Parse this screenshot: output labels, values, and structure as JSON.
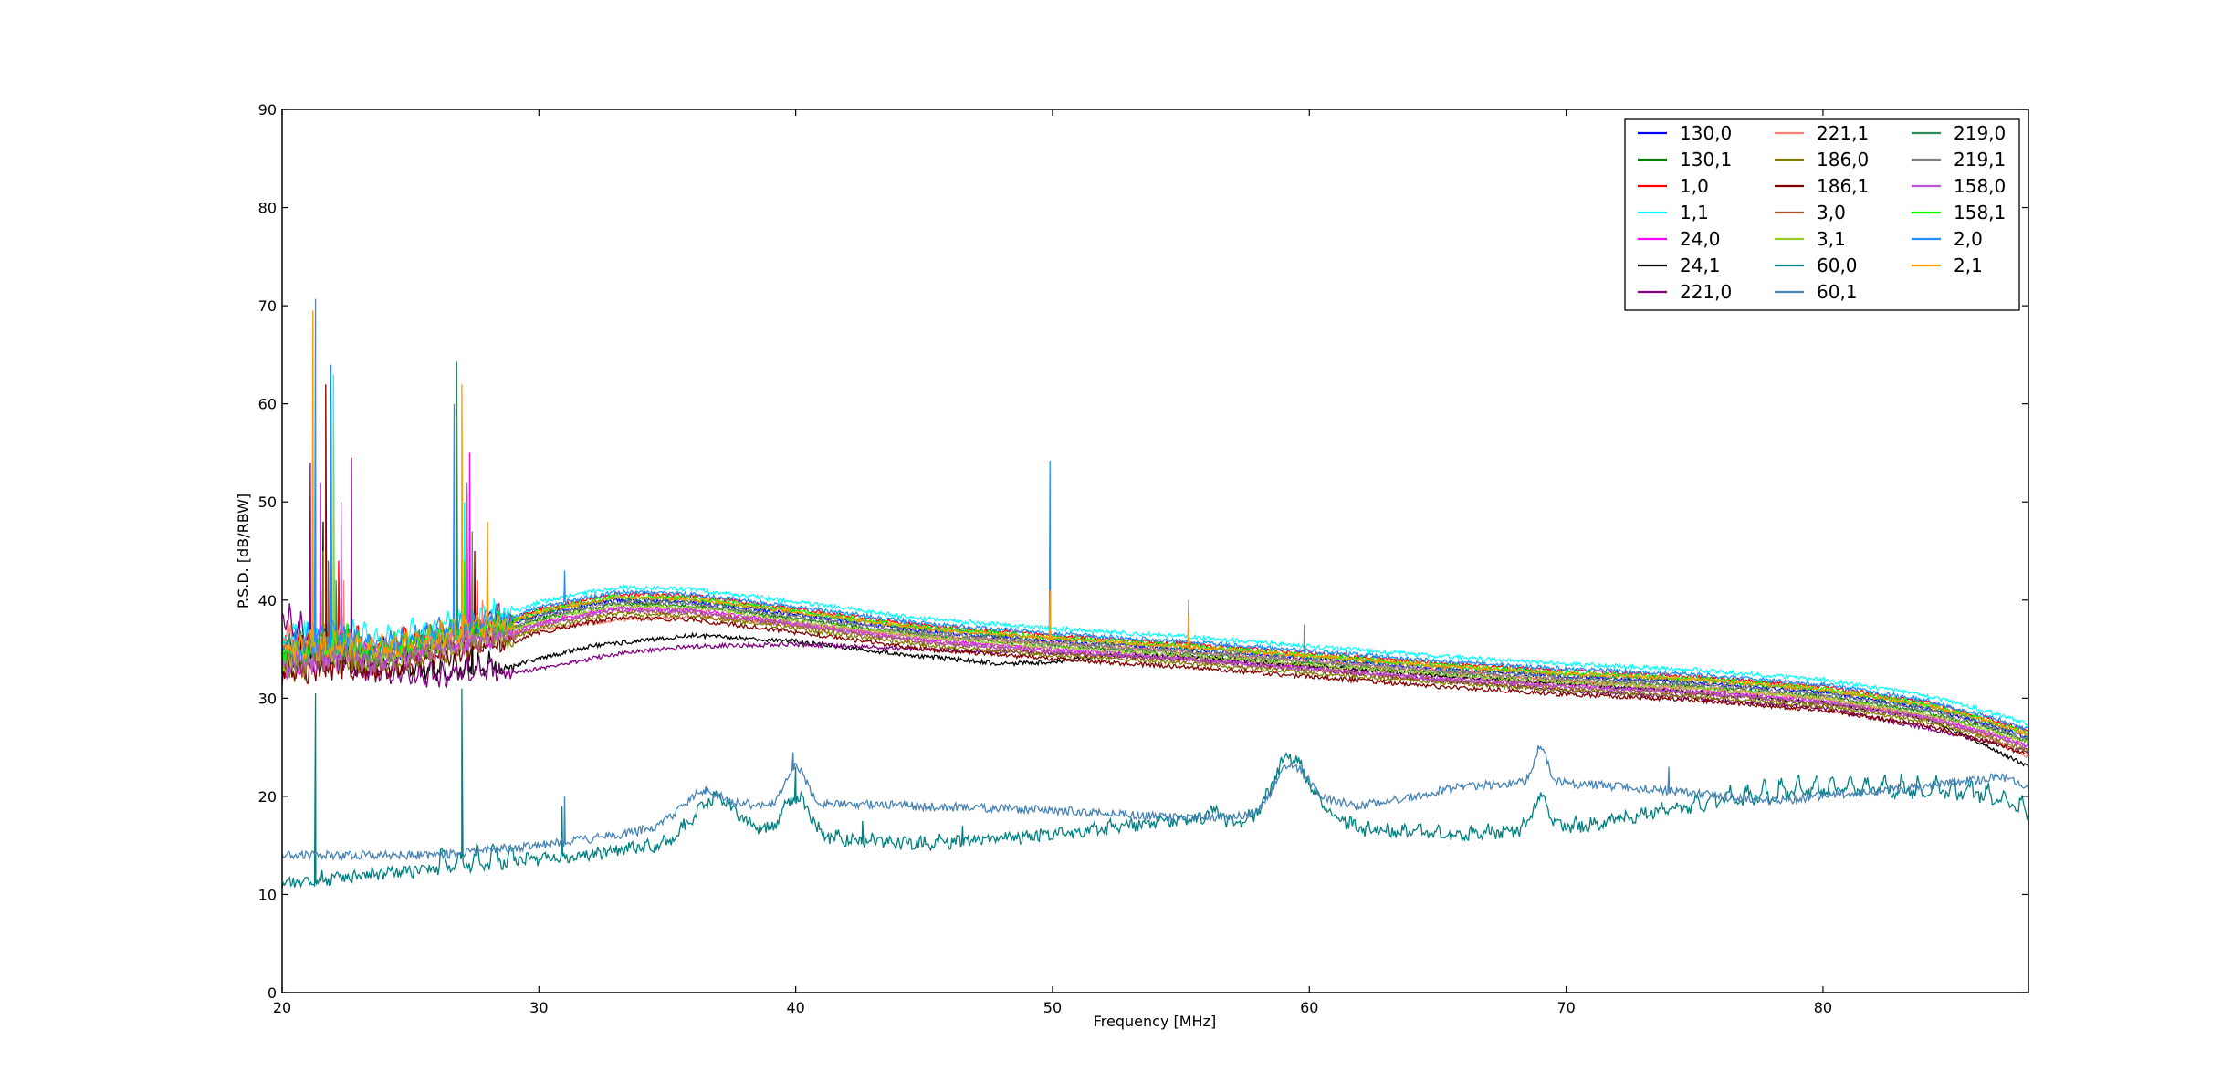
{
  "chart_data": {
    "type": "line",
    "title": "",
    "xlabel": "Frequency [MHz]",
    "ylabel": "P.S.D. [dB/RBW]",
    "xlim": [
      20,
      88
    ],
    "ylim": [
      0,
      90
    ],
    "x_ticks": [
      20,
      30,
      40,
      50,
      60,
      70,
      80
    ],
    "y_ticks": [
      0,
      10,
      20,
      30,
      40,
      50,
      60,
      70,
      80,
      90
    ],
    "grid": false,
    "legend_position": "top-right",
    "legend_columns": 3,
    "series": [
      {
        "name": "130,0",
        "color": "#0000ff",
        "profile": "upper",
        "offset": 0.0,
        "spikes": [
          [
            21.3,
            50
          ],
          [
            27.0,
            44
          ]
        ]
      },
      {
        "name": "130,1",
        "color": "#008000",
        "profile": "upper",
        "offset": -0.4,
        "spikes": [
          [
            21.9,
            46
          ],
          [
            27.3,
            48
          ]
        ]
      },
      {
        "name": "1,0",
        "color": "#ff0000",
        "profile": "upper",
        "offset": 0.6,
        "spikes": [
          [
            22.2,
            44
          ],
          [
            27.6,
            42
          ]
        ]
      },
      {
        "name": "1,1",
        "color": "#00ffff",
        "profile": "upper",
        "offset": 1.3,
        "spikes": [
          [
            22.0,
            63
          ],
          [
            27.1,
            50
          ]
        ]
      },
      {
        "name": "24,0",
        "color": "#ff00ff",
        "profile": "upper",
        "offset": -0.8,
        "spikes": [
          [
            21.5,
            52
          ],
          [
            27.3,
            55
          ]
        ]
      },
      {
        "name": "24,1",
        "color": "#000000",
        "profile": "black",
        "offset": 0.0,
        "spikes": [
          [
            21.6,
            48
          ],
          [
            27.4,
            40
          ]
        ]
      },
      {
        "name": "221,0",
        "color": "#800080",
        "profile": "purple",
        "offset": 0.0,
        "spikes": [
          [
            21.1,
            54
          ],
          [
            22.7,
            54.5
          ],
          [
            27.2,
            51
          ]
        ]
      },
      {
        "name": "221,1",
        "color": "#fa8072",
        "profile": "salmon",
        "offset": 0.0,
        "spikes": [
          [
            22.4,
            42
          ],
          [
            27.8,
            40
          ]
        ]
      },
      {
        "name": "186,0",
        "color": "#808000",
        "profile": "upper",
        "offset": -1.4,
        "spikes": [
          [
            21.6,
            45
          ],
          [
            27.4,
            47
          ]
        ]
      },
      {
        "name": "186,1",
        "color": "#800000",
        "profile": "upper",
        "offset": -1.8,
        "spikes": [
          [
            21.7,
            62
          ],
          [
            27.5,
            45
          ]
        ]
      },
      {
        "name": "3,0",
        "color": "#a0522d",
        "profile": "upper",
        "offset": -1.1,
        "spikes": [
          [
            21.8,
            44
          ],
          [
            27.2,
            46
          ]
        ]
      },
      {
        "name": "3,1",
        "color": "#9acd32",
        "profile": "upper",
        "offset": -0.6,
        "spikes": [
          [
            22.0,
            58
          ],
          [
            27.0,
            47
          ]
        ]
      },
      {
        "name": "60,0",
        "color": "#008080",
        "profile": "teal",
        "offset": 0.0,
        "spikes": [
          [
            21.3,
            30.5
          ],
          [
            27.0,
            31
          ],
          [
            30.9,
            19
          ],
          [
            40.0,
            23
          ],
          [
            42.6,
            17.5
          ],
          [
            46.5,
            17
          ]
        ]
      },
      {
        "name": "60,1",
        "color": "#4682b4",
        "profile": "steel",
        "offset": 0.0,
        "spikes": [
          [
            31.0,
            20
          ],
          [
            36.5,
            21
          ],
          [
            39.9,
            24.5
          ],
          [
            69.0,
            25
          ],
          [
            74.0,
            23
          ]
        ]
      },
      {
        "name": "219,0",
        "color": "#2e8b57",
        "profile": "upper",
        "offset": 0.2,
        "spikes": [
          [
            22.1,
            42
          ],
          [
            26.8,
            64.3
          ]
        ]
      },
      {
        "name": "219,1",
        "color": "#808080",
        "profile": "upper",
        "offset": -0.2,
        "spikes": [
          [
            21.2,
            46
          ],
          [
            27.4,
            46
          ],
          [
            55.3,
            40
          ],
          [
            59.8,
            37.5
          ]
        ]
      },
      {
        "name": "158,0",
        "color": "#ba55d3",
        "profile": "upper",
        "offset": -1.0,
        "spikes": [
          [
            22.3,
            50
          ],
          [
            27.2,
            52
          ]
        ]
      },
      {
        "name": "158,1",
        "color": "#00ff00",
        "profile": "upper",
        "offset": 0.4,
        "spikes": [
          [
            21.9,
            48
          ],
          [
            27.1,
            44
          ]
        ]
      },
      {
        "name": "2,0",
        "color": "#1e90ff",
        "profile": "upper",
        "offset": 0.8,
        "spikes": [
          [
            21.3,
            70.7
          ],
          [
            21.9,
            64
          ],
          [
            26.7,
            60
          ],
          [
            31.0,
            43
          ],
          [
            49.9,
            54.2
          ]
        ]
      },
      {
        "name": "2,1",
        "color": "#ff9900",
        "profile": "upper",
        "offset": 0.3,
        "spikes": [
          [
            21.2,
            69.5
          ],
          [
            27.0,
            62
          ],
          [
            28.0,
            48
          ],
          [
            49.9,
            41
          ],
          [
            55.3,
            38.5
          ]
        ]
      }
    ]
  }
}
